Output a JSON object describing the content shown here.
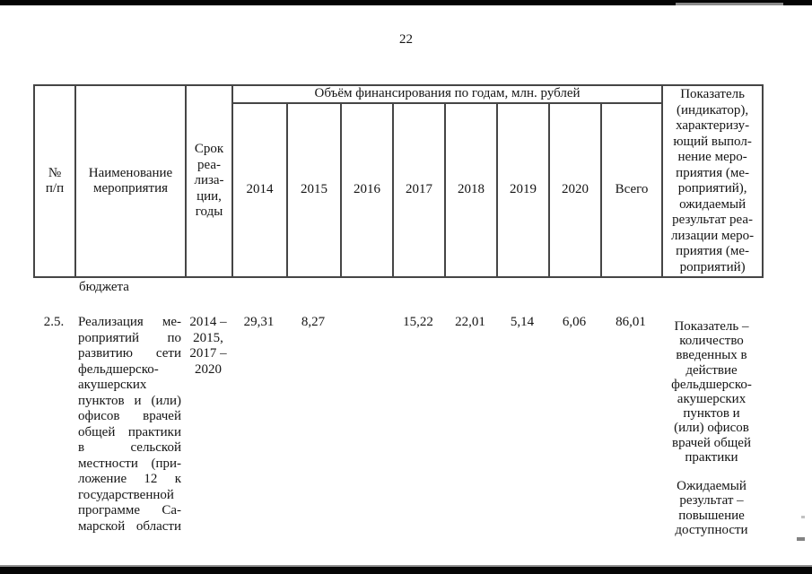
{
  "page": {
    "number": "22"
  },
  "table": {
    "header": {
      "num_lines": [
        "№",
        "п/п"
      ],
      "name_lines": [
        "Наименование",
        "мероприятия"
      ],
      "term_lines": [
        "Срок",
        "реа-",
        "лиза-",
        "ции,",
        "годы"
      ],
      "band": "Объём финансирования по годам, млн. рублей",
      "years": [
        "2014",
        "2015",
        "2016",
        "2017",
        "2018",
        "2019",
        "2020"
      ],
      "total_label": "Всего",
      "indicator_lines": [
        "Показатель",
        "(индикатор),",
        "характеризу-",
        "ющий выпол-",
        "нение меро-",
        "приятия (ме-",
        "роприятий),",
        "ожидаемый",
        "результат реа-",
        "лизации меро-",
        "приятия (ме-",
        "роприятий)"
      ]
    },
    "carryover_text": "бюджета",
    "row": {
      "num": "2.5.",
      "name_lines": [
        "Реализация ме-",
        "роприятий по",
        "развитию сети",
        "фельдшерско-",
        "акушерских",
        "пунктов и (или)",
        "офисов врачей",
        "общей практики",
        "в сельской",
        "местности (при-",
        "ложение 12 к",
        "государственной",
        "программе Са-",
        "марской области"
      ],
      "term_lines": [
        "2014 –",
        "2015,",
        "2017 –",
        "2020"
      ],
      "values": [
        "29,31",
        "8,27",
        "",
        "15,22",
        "22,01",
        "5,14",
        "6,06"
      ],
      "total": "86,01",
      "indicator_lines": [
        "Показатель –",
        "количество",
        "введенных в",
        "действие",
        "фельдшерско-",
        "акушерских",
        "пунктов и",
        "(или) офисов",
        "врачей общей",
        "практики",
        "",
        "Ожидаемый",
        "результат –",
        "повышение",
        "доступности"
      ]
    }
  }
}
